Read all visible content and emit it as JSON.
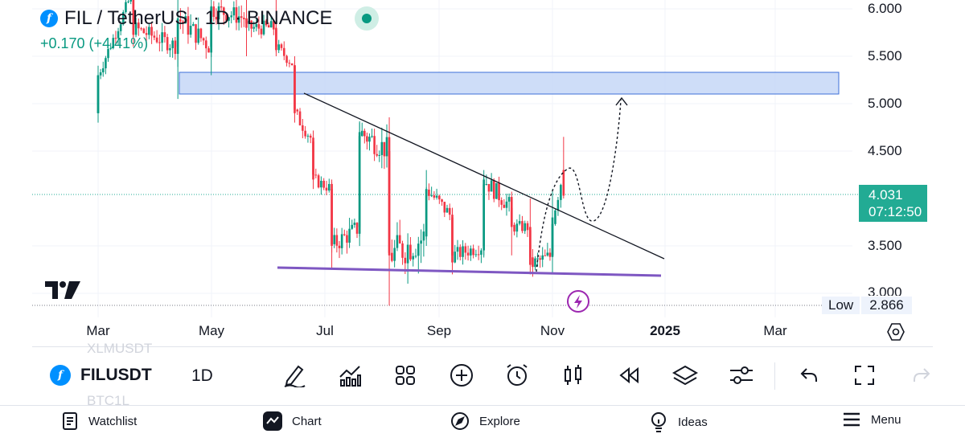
{
  "header": {
    "symbol_title": "FIL / TetherUS · 1D · BINANCE",
    "coin_icon_letter": "f",
    "change": "+0.170 (+4.41%)"
  },
  "price_axis": {
    "labels": [
      "6.000",
      "5.500",
      "5.000",
      "4.500",
      "3.500",
      "3.000"
    ],
    "last_price": "4.031",
    "countdown": "07:12:50",
    "low_label": "Low",
    "low_value": "2.866"
  },
  "time_axis": {
    "labels": [
      "Mar",
      "May",
      "Jul",
      "Sep",
      "Nov",
      "2025",
      "Mar"
    ]
  },
  "chart_data": {
    "type": "candlestick",
    "yscale": "linear",
    "ylim": [
      2.87,
      6.1
    ],
    "y_ticks": [
      3.0,
      3.5,
      4.5,
      5.0,
      5.5,
      6.0
    ],
    "x_ticks": [
      "Mar",
      "May",
      "Jul",
      "Sep",
      "Nov",
      "2025",
      "Mar"
    ],
    "last_price": 4.031,
    "low": 2.866,
    "up_color": "#089981",
    "down_color": "#f23645",
    "candles_estimated": [
      [
        "2024-03-01",
        4.9,
        5.4,
        4.8,
        5.3
      ],
      [
        "2024-03-20",
        6.2,
        6.4,
        5.6,
        5.8
      ],
      [
        "2024-04-13",
        5.6,
        6.1,
        5.05,
        5.9
      ],
      [
        "2024-05-01",
        5.6,
        6.2,
        5.3,
        6.0
      ],
      [
        "2024-05-20",
        5.9,
        6.2,
        5.5,
        5.8
      ],
      [
        "2024-06-05",
        5.8,
        6.1,
        5.5,
        5.6
      ],
      [
        "2024-06-15",
        5.4,
        5.5,
        4.8,
        4.9
      ],
      [
        "2024-06-25",
        4.6,
        4.7,
        4.1,
        4.2
      ],
      [
        "2024-07-05",
        4.1,
        4.2,
        3.25,
        3.5
      ],
      [
        "2024-07-20",
        3.7,
        4.8,
        3.6,
        4.7
      ],
      [
        "2024-08-05",
        4.5,
        4.6,
        2.87,
        3.4
      ],
      [
        "2024-08-25",
        3.6,
        4.3,
        3.5,
        4.1
      ],
      [
        "2024-09-08",
        3.8,
        3.9,
        3.2,
        3.4
      ],
      [
        "2024-09-25",
        3.5,
        4.3,
        3.4,
        4.2
      ],
      [
        "2024-10-10",
        3.9,
        4.0,
        3.4,
        3.7
      ],
      [
        "2024-10-20",
        3.7,
        4.0,
        3.2,
        3.3
      ],
      [
        "2024-11-01",
        3.4,
        4.1,
        3.2,
        3.8
      ],
      [
        "2024-11-07",
        4.3,
        4.65,
        4.0,
        4.03
      ]
    ],
    "drawings": {
      "resistance_zone": {
        "from": "2024-04-13",
        "to": "2025-04-15",
        "low": 5.1,
        "high": 5.33,
        "color": "#c5d7f7"
      },
      "descending_trendline": {
        "points": [
          [
            "2024-06-12",
            5.1
          ],
          [
            "2024-12-01",
            3.4
          ]
        ]
      },
      "support_line": {
        "points": [
          [
            "2024-06-01",
            3.25
          ],
          [
            "2024-12-01",
            3.2
          ]
        ],
        "color": "#7e57c2"
      },
      "projection_path": "dotted up to ~5.0"
    }
  },
  "toolbar": {
    "symbol": "FILUSDT",
    "interval": "1D",
    "ghost_above": "XLMUSDT",
    "ghost_below": "BTC1L",
    "tools": [
      "draw-tool-icon",
      "indicators-icon",
      "templates-icon",
      "add-icon",
      "alert-icon",
      "candle-type-icon",
      "replay-icon",
      "layers-icon",
      "settings-sliders-icon",
      "undo-icon",
      "fullscreen-icon",
      "redo-icon"
    ]
  },
  "nav": {
    "watchlist": "Watchlist",
    "chart": "Chart",
    "explore": "Explore",
    "ideas": "Ideas",
    "menu": "Menu"
  },
  "colors": {
    "accent": "#22ab94",
    "up": "#089981",
    "down": "#f23645",
    "zone": "#c5d7f7",
    "support": "#7e57c2"
  }
}
